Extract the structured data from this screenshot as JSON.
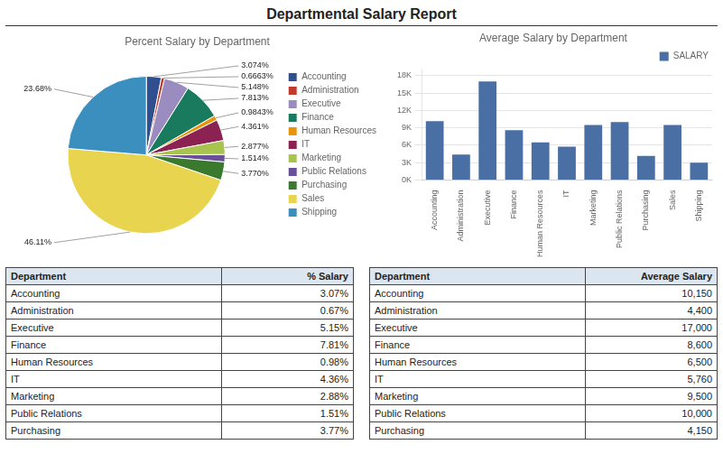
{
  "title": "Departmental Salary Report",
  "chart_data": [
    {
      "type": "pie",
      "title": "Percent Salary by Department",
      "categories": [
        "Accounting",
        "Administration",
        "Executive",
        "Finance",
        "Human Resources",
        "IT",
        "Marketing",
        "Public Relations",
        "Purchasing",
        "Sales",
        "Shipping"
      ],
      "values": [
        3.074,
        0.6663,
        5.148,
        7.813,
        0.9843,
        4.361,
        2.877,
        1.514,
        3.77,
        46.11,
        23.68
      ],
      "value_labels": [
        "3.074%",
        "0.6663%",
        "5.148%",
        "7.813%",
        "0.9843%",
        "4.361%",
        "2.877%",
        "1.514%",
        "3.770%",
        "46.11%",
        "23.68%"
      ],
      "colors": [
        "#2f4f8f",
        "#c0392b",
        "#9b8cbf",
        "#1a7a5e",
        "#e8940a",
        "#8b2252",
        "#a8c44e",
        "#6a4f9b",
        "#3a7a2e",
        "#e8d44e",
        "#3a8fbf"
      ],
      "data_labels": true,
      "legend": "right"
    },
    {
      "type": "bar",
      "title": "Average Salary by Department",
      "categories": [
        "Accounting",
        "Administration",
        "Executive",
        "Finance",
        "Human Resources",
        "IT",
        "Marketing",
        "Public Relations",
        "Purchasing",
        "Sales",
        "Shipping"
      ],
      "series": [
        {
          "name": "SALARY",
          "color": "#4a6fa5",
          "values": [
            10150,
            4400,
            17000,
            8600,
            6500,
            5760,
            9500,
            10000,
            4150,
            9500,
            3000
          ]
        }
      ],
      "ylim": [
        0,
        19000
      ],
      "yticks": [
        {
          "value": 0,
          "label": "0K"
        },
        {
          "value": 3000,
          "label": "3K"
        },
        {
          "value": 6000,
          "label": "6K"
        },
        {
          "value": 9000,
          "label": "9K"
        },
        {
          "value": 12000,
          "label": "12K"
        },
        {
          "value": 15000,
          "label": "15K"
        },
        {
          "value": 18000,
          "label": "18K"
        }
      ],
      "grid": true,
      "legend": "upper right"
    },
    {
      "type": "table",
      "color": "#dce6f1",
      "columns": [
        "Department",
        "% Salary"
      ],
      "rows": [
        [
          "Accounting",
          "3.07%"
        ],
        [
          "Administration",
          "0.67%"
        ],
        [
          "Executive",
          "5.15%"
        ],
        [
          "Finance",
          "7.81%"
        ],
        [
          "Human Resources",
          "0.98%"
        ],
        [
          "IT",
          "4.36%"
        ],
        [
          "Marketing",
          "2.88%"
        ],
        [
          "Public Relations",
          "1.51%"
        ],
        [
          "Purchasing",
          "3.77%"
        ]
      ]
    },
    {
      "type": "table",
      "color": "#dce6f1",
      "columns": [
        "Department",
        "Average Salary"
      ],
      "rows": [
        [
          "Accounting",
          "10,150"
        ],
        [
          "Administration",
          "4,400"
        ],
        [
          "Executive",
          "17,000"
        ],
        [
          "Finance",
          "8,600"
        ],
        [
          "Human Resources",
          "6,500"
        ],
        [
          "IT",
          "5,760"
        ],
        [
          "Marketing",
          "9,500"
        ],
        [
          "Public Relations",
          "10,000"
        ],
        [
          "Purchasing",
          "4,150"
        ]
      ]
    }
  ]
}
